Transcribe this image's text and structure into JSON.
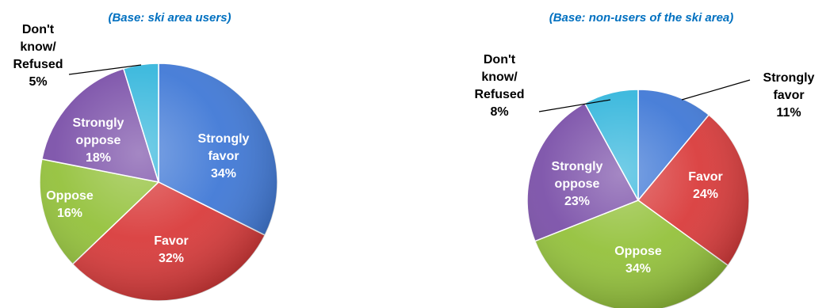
{
  "chart_data": [
    {
      "type": "pie",
      "subtitle": "(Base: ski area users)",
      "subtitle_color": "#0070C0",
      "slices": [
        {
          "label": [
            "Strongly",
            "favor",
            "34%"
          ],
          "value": 34,
          "color": "#3F78D6",
          "label_color": "#FFFFFF"
        },
        {
          "label": [
            "Favor",
            "32%"
          ],
          "value": 32,
          "color": "#D93A3A",
          "label_color": "#FFFFFF"
        },
        {
          "label": [
            "Oppose",
            "16%"
          ],
          "value": 16,
          "color": "#93C13A",
          "label_color": "#FFFFFF"
        },
        {
          "label": [
            "Strongly",
            "oppose",
            "18%"
          ],
          "value": 18,
          "color": "#7A4FA8",
          "label_color": "#FFFFFF"
        },
        {
          "label": [
            "Don't",
            "know/",
            "Refused",
            "5%"
          ],
          "value": 5,
          "color": "#34B6DC",
          "label_color": "#000000"
        }
      ]
    },
    {
      "type": "pie",
      "subtitle": "(Base: non-users of the ski area)",
      "subtitle_color": "#0070C0",
      "slices": [
        {
          "label": [
            "Strongly",
            "favor",
            "11%"
          ],
          "value": 11,
          "color": "#3F78D6",
          "label_color": "#000000"
        },
        {
          "label": [
            "Favor",
            "24%"
          ],
          "value": 24,
          "color": "#D93A3A",
          "label_color": "#FFFFFF"
        },
        {
          "label": [
            "Oppose",
            "34%"
          ],
          "value": 34,
          "color": "#93C13A",
          "label_color": "#FFFFFF"
        },
        {
          "label": [
            "Strongly",
            "oppose",
            "23%"
          ],
          "value": 23,
          "color": "#7A4FA8",
          "label_color": "#FFFFFF"
        },
        {
          "label": [
            "Don't",
            "know/",
            "Refused",
            "8%"
          ],
          "value": 8,
          "color": "#34B6DC",
          "label_color": "#000000"
        }
      ]
    }
  ]
}
